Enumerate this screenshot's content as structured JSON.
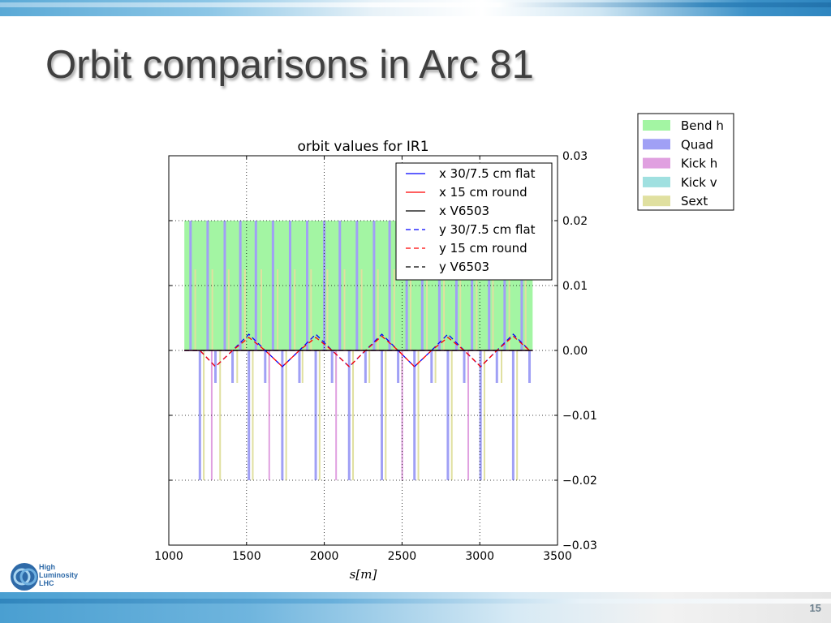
{
  "slide": {
    "title": "Orbit comparisons in Arc 81",
    "page_number": "15",
    "logo_lines": [
      "High",
      "Luminosity",
      "LHC"
    ]
  },
  "colors": {
    "bend_h": "#a3f5a3",
    "quad": "#a0a0f5",
    "kick_h": "#e0a0e0",
    "kick_v": "#a0e0e0",
    "sext": "#e0e0a0",
    "x_flat": "#0000ff",
    "x_round": "#ff0000",
    "x_v6503": "#000000",
    "y_flat": "#0000ff",
    "y_round": "#ff0000",
    "y_v6503": "#000000"
  },
  "chart_data": {
    "type": "line",
    "title": "orbit values for IR1",
    "xlabel": "s[m]",
    "ylabel": "",
    "xlim": [
      1000,
      3500
    ],
    "ylim": [
      -0.03,
      0.03
    ],
    "x_ticks": [
      "1000",
      "1500",
      "2000",
      "2500",
      "3000",
      "3500"
    ],
    "y_ticks": [
      "−0.03",
      "−0.02",
      "−0.01",
      "0.00",
      "0.01",
      "0.02",
      "0.03"
    ],
    "grid": true,
    "y_axis_side": "right",
    "legend": {
      "location": "upper-right",
      "entries": [
        "x 30/7.5 cm flat",
        "x 15 cm round",
        "x V6503",
        "y 30/7.5 cm flat",
        "y 15 cm round",
        "y V6503"
      ]
    },
    "element_legend": {
      "location": "outside-right",
      "entries": [
        "Bend h",
        "Quad",
        "Kick h",
        "Kick v",
        "Sext"
      ]
    },
    "series": [
      {
        "name": "x 30/7.5 cm flat",
        "style": "solid",
        "x": [
          1100,
          3340
        ],
        "y": [
          0.0,
          0.0
        ]
      },
      {
        "name": "x 15 cm round",
        "style": "solid",
        "x": [
          1100,
          3340
        ],
        "y": [
          0.0,
          0.0
        ]
      },
      {
        "name": "x V6503",
        "style": "solid",
        "x": [
          1100,
          3340
        ],
        "y": [
          0.0,
          0.0
        ]
      },
      {
        "name": "y 30/7.5 cm flat",
        "style": "dashed",
        "x": [
          1100,
          1200,
          1300,
          1410,
          1515,
          1620,
          1730,
          1840,
          1945,
          2050,
          2160,
          2265,
          2370,
          2475,
          2580,
          2690,
          2795,
          2900,
          3005,
          3110,
          3215,
          3320
        ],
        "y": [
          0.0,
          0.0,
          -0.0025,
          0.0,
          0.0025,
          0.0,
          -0.0025,
          0.0,
          0.0025,
          0.0,
          -0.0025,
          0.0,
          0.0025,
          0.0,
          -0.0025,
          0.0,
          0.0025,
          0.0,
          -0.0025,
          0.0,
          0.0025,
          0.0
        ]
      },
      {
        "name": "y 15 cm round",
        "style": "dashed",
        "x": [
          1100,
          1200,
          1300,
          1410,
          1515,
          1620,
          1730,
          1840,
          1945,
          2050,
          2160,
          2265,
          2370,
          2475,
          2580,
          2690,
          2795,
          2900,
          3005,
          3110,
          3215,
          3320
        ],
        "y": [
          0.0,
          0.0,
          -0.0025,
          0.0,
          0.002,
          0.0,
          -0.0025,
          0.0,
          0.002,
          0.0,
          -0.0025,
          0.0,
          0.0022,
          0.0,
          -0.0025,
          0.0,
          0.002,
          0.0,
          -0.0025,
          0.0,
          0.0022,
          0.0
        ]
      },
      {
        "name": "y V6503",
        "style": "dashed",
        "x": [
          1100,
          3340
        ],
        "y": [
          0.0,
          0.0
        ]
      }
    ],
    "elements": {
      "bend_h_range": [
        1100,
        3340
      ],
      "bend_h_height": 0.02,
      "quad_positions": [
        1140,
        1200,
        1250,
        1300,
        1360,
        1410,
        1460,
        1515,
        1560,
        1620,
        1670,
        1730,
        1780,
        1840,
        1890,
        1945,
        2000,
        2050,
        2100,
        2160,
        2210,
        2265,
        2320,
        2370,
        2420,
        2475,
        2530,
        2580,
        2630,
        2690,
        2740,
        2795,
        2850,
        2900,
        2950,
        3005,
        3060,
        3110,
        3160,
        3215,
        3270,
        3320
      ],
      "quad_heights": [
        0.02,
        -0.02,
        0.02,
        -0.005,
        0.02,
        -0.005,
        0.02,
        -0.02,
        0.02,
        -0.005,
        0.02,
        -0.02,
        0.02,
        -0.005,
        0.02,
        -0.02,
        0.02,
        -0.005,
        0.02,
        -0.02,
        0.02,
        -0.005,
        0.02,
        -0.02,
        0.02,
        -0.005,
        0.02,
        -0.02,
        0.02,
        -0.005,
        0.02,
        -0.02,
        0.02,
        -0.005,
        0.02,
        -0.02,
        0.02,
        -0.005,
        0.02,
        -0.02,
        0.02,
        -0.005
      ],
      "sext_positions": [
        1170,
        1225,
        1280,
        1330,
        1385,
        1440,
        1490,
        1540,
        1595,
        1645,
        1700,
        1755,
        1810,
        1860,
        1915,
        1970,
        2020,
        2075,
        2130,
        2185,
        2240,
        2290,
        2345,
        2395,
        2450,
        2500,
        2555,
        2605,
        2660,
        2715,
        2770,
        2820,
        2875,
        2925,
        2980,
        3030,
        3085,
        3140,
        3190,
        3240,
        3295
      ],
      "sext_heights": [
        0.0125,
        -0.02,
        0.0125,
        -0.02,
        0.0125,
        -0.005,
        0.0125,
        -0.02,
        0.0125,
        -0.005,
        0.0125,
        -0.02,
        0.0125,
        -0.005,
        0.0125,
        -0.02,
        0.0125,
        -0.005,
        0.0125,
        -0.02,
        0.0125,
        -0.005,
        0.0125,
        -0.02,
        0.0125,
        -0.005,
        0.0125,
        -0.02,
        0.0125,
        -0.005,
        0.0125,
        -0.02,
        0.0125,
        -0.005,
        0.0125,
        -0.02,
        0.0125,
        -0.005,
        0.0125,
        -0.02,
        0.0125
      ],
      "kick_h_positions": [
        1250,
        1620,
        2050,
        2475,
        2900
      ],
      "kick_h_heights": [
        -0.02,
        -0.02,
        -0.02,
        -0.02,
        -0.02
      ]
    }
  }
}
